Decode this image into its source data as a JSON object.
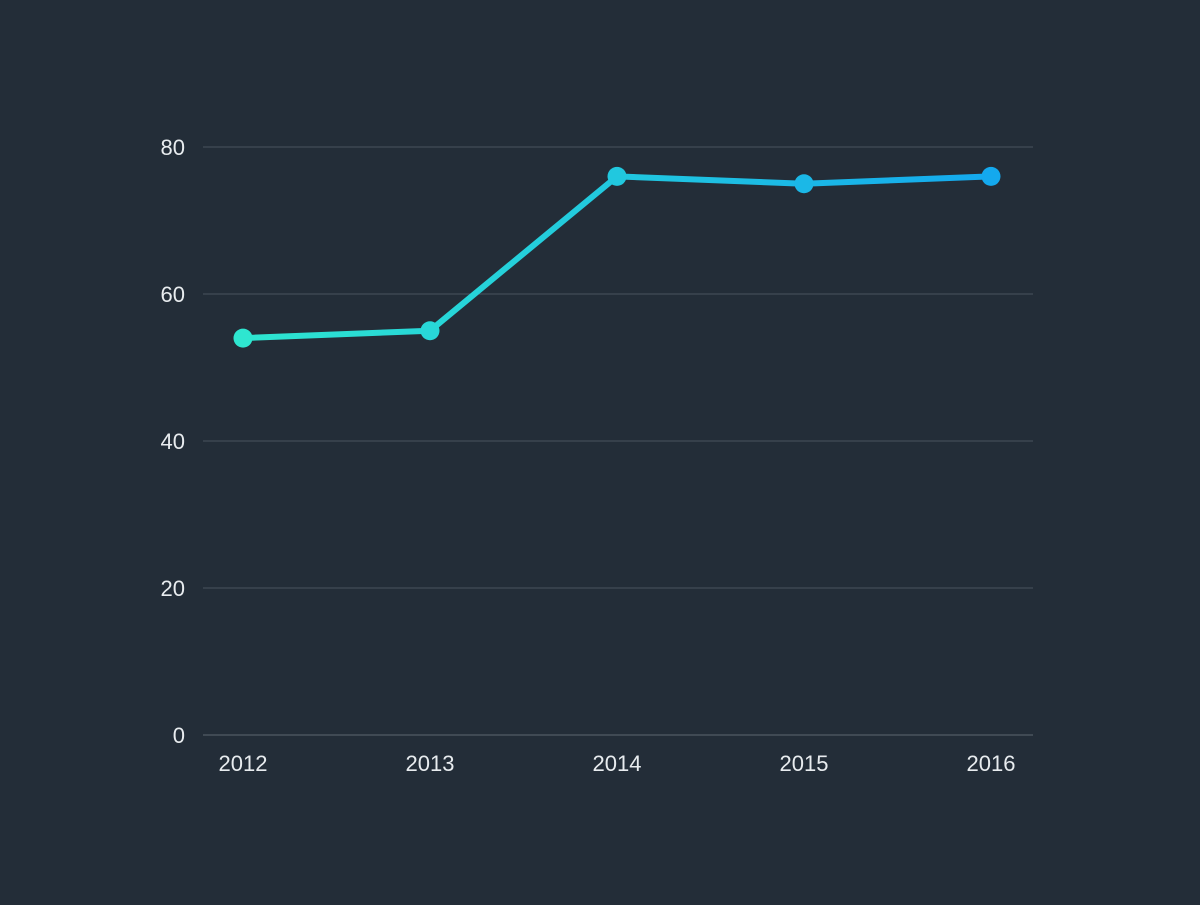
{
  "chart_data": {
    "type": "line",
    "title": "",
    "xlabel": "",
    "ylabel": "",
    "x": [
      "2012",
      "2013",
      "2014",
      "2015",
      "2016"
    ],
    "series": [
      {
        "values": [
          54,
          55,
          76,
          75,
          76
        ]
      }
    ],
    "ylim": [
      0,
      80
    ],
    "yticks": [
      "0",
      "20",
      "40",
      "60",
      "80"
    ],
    "grid": true,
    "legend": "none",
    "colors": {
      "background": "#232d38",
      "grid": "#4a545e",
      "text": "#e8ecef",
      "line_start": "#2ee6d0",
      "line_end": "#14a9ee"
    }
  }
}
